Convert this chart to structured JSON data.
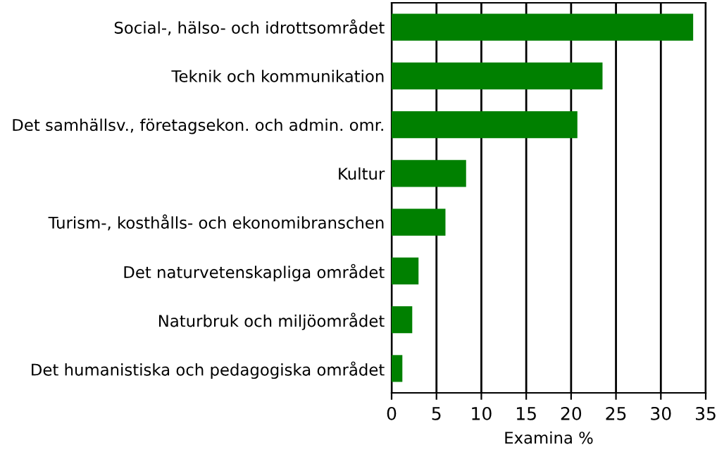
{
  "chart_data": {
    "type": "bar",
    "orientation": "horizontal",
    "xlabel": "Examina %",
    "categories": [
      "Social-, hälso- och idrottsområdet",
      "Teknik och kommunikation",
      "Det samhällsv., företagsekon. och admin. omr.",
      "Kultur",
      "Turism-, kosthålls- och ekonomibranschen",
      "Det naturvetenskapliga området",
      "Naturbruk och miljöområdet",
      "Det humanistiska och pedagogiska området"
    ],
    "values": [
      33.6,
      23.5,
      20.7,
      8.3,
      6.0,
      3.0,
      2.3,
      1.2
    ],
    "color": "#008000",
    "xlim": [
      0,
      35
    ],
    "xticks": [
      0,
      5,
      10,
      15,
      20,
      25,
      30,
      35
    ],
    "grid": "x",
    "legend": false
  }
}
